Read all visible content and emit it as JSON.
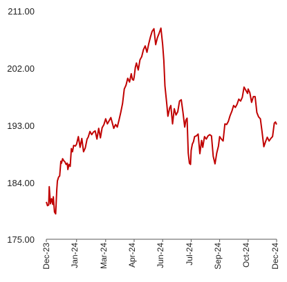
{
  "chart_data": {
    "type": "line",
    "title": "",
    "xlabel": "",
    "ylabel": "",
    "ylim": [
      175,
      211
    ],
    "yticks": [
      "211.00",
      "202.00",
      "193.00",
      "184.00",
      "175.00"
    ],
    "ytick_values": [
      211,
      202,
      193,
      184,
      175
    ],
    "xticks": [
      "Dec-23",
      "Jan-24",
      "Mar-24",
      "Apr-24",
      "Jun-24",
      "Jul-24",
      "Sep-24",
      "Oct-24",
      "Dec-24"
    ],
    "xtick_dates": [
      "2023-12-01",
      "2024-01-22",
      "2024-03-12",
      "2024-04-30",
      "2024-06-18",
      "2024-08-06",
      "2024-09-24",
      "2024-11-12",
      "2024-12-31"
    ],
    "grid": false,
    "legend": "none",
    "color": "#c00000",
    "series": [
      {
        "x": [
          "2023-12-01",
          "2023-12-03",
          "2023-12-05",
          "2023-12-06",
          "2023-12-08",
          "2023-12-10",
          "2023-12-12",
          "2023-12-13",
          "2023-12-15",
          "2023-12-17",
          "2023-12-19",
          "2023-12-20",
          "2023-12-22",
          "2023-12-24",
          "2023-12-26",
          "2023-12-27",
          "2023-12-29",
          "2023-12-31",
          "2024-01-02",
          "2024-01-04",
          "2024-01-06",
          "2024-01-07",
          "2024-01-09",
          "2024-01-11",
          "2024-01-13",
          "2024-01-15",
          "2024-01-17",
          "2024-01-20",
          "2024-01-22",
          "2024-01-25",
          "2024-01-28",
          "2024-01-31",
          "2024-02-03",
          "2024-02-06",
          "2024-02-09",
          "2024-02-11",
          "2024-02-14",
          "2024-02-17",
          "2024-02-20",
          "2024-02-23",
          "2024-02-26",
          "2024-02-29",
          "2024-03-03",
          "2024-03-06",
          "2024-03-09",
          "2024-03-12",
          "2024-03-15",
          "2024-03-18",
          "2024-03-21",
          "2024-03-23",
          "2024-03-26",
          "2024-03-29",
          "2024-04-01",
          "2024-04-04",
          "2024-04-07",
          "2024-04-10",
          "2024-04-13",
          "2024-04-16",
          "2024-04-19",
          "2024-04-22",
          "2024-04-25",
          "2024-04-27",
          "2024-04-29",
          "2024-04-30",
          "2024-05-02",
          "2024-05-04",
          "2024-05-07",
          "2024-05-10",
          "2024-05-13",
          "2024-05-16",
          "2024-05-19",
          "2024-05-22",
          "2024-05-25",
          "2024-05-28",
          "2024-05-31",
          "2024-06-03",
          "2024-06-06",
          "2024-06-09",
          "2024-06-12",
          "2024-06-15",
          "2024-06-18",
          "2024-06-20",
          "2024-06-22",
          "2024-06-25",
          "2024-06-27",
          "2024-06-30",
          "2024-07-02",
          "2024-07-05",
          "2024-07-08",
          "2024-07-11",
          "2024-07-14",
          "2024-07-17",
          "2024-07-20",
          "2024-07-23",
          "2024-07-26",
          "2024-07-28",
          "2024-07-30",
          "2024-08-01",
          "2024-08-03",
          "2024-08-05",
          "2024-08-06",
          "2024-08-08",
          "2024-08-10",
          "2024-08-12",
          "2024-08-15",
          "2024-08-18",
          "2024-08-21",
          "2024-08-24",
          "2024-08-26",
          "2024-08-29",
          "2024-09-01",
          "2024-09-04",
          "2024-09-07",
          "2024-09-10",
          "2024-09-13",
          "2024-09-16",
          "2024-09-19",
          "2024-09-22",
          "2024-09-24",
          "2024-09-27",
          "2024-09-30",
          "2024-10-03",
          "2024-10-06",
          "2024-10-09",
          "2024-10-12",
          "2024-10-15",
          "2024-10-18",
          "2024-10-21",
          "2024-10-24",
          "2024-10-27",
          "2024-10-30",
          "2024-11-02",
          "2024-11-05",
          "2024-11-08",
          "2024-11-11",
          "2024-11-12",
          "2024-11-15",
          "2024-11-18",
          "2024-11-21",
          "2024-11-24",
          "2024-11-27",
          "2024-11-30",
          "2024-12-03",
          "2024-12-06",
          "2024-12-09",
          "2024-12-12",
          "2024-12-15",
          "2024-12-18",
          "2024-12-21",
          "2024-12-24",
          "2024-12-27",
          "2024-12-29",
          "2024-12-31"
        ],
        "y": [
          180.9,
          180.3,
          180.4,
          183.3,
          180.6,
          181.4,
          180.5,
          181.7,
          179.3,
          179.0,
          182.8,
          184.2,
          184.8,
          185.0,
          187.3,
          187.0,
          187.7,
          187.4,
          187.2,
          186.8,
          187.0,
          186.0,
          186.8,
          186.5,
          189.3,
          188.8,
          189.8,
          189.7,
          190.0,
          191.2,
          189.5,
          190.9,
          188.8,
          189.4,
          190.8,
          191.1,
          192.0,
          191.5,
          191.9,
          192.1,
          190.8,
          192.5,
          191.0,
          192.6,
          193.1,
          194.0,
          193.2,
          193.7,
          194.2,
          193.5,
          192.5,
          193.1,
          192.7,
          193.8,
          195.0,
          196.4,
          198.7,
          199.3,
          200.4,
          199.8,
          201.1,
          200.2,
          200.1,
          200.6,
          202.1,
          202.8,
          201.7,
          203.3,
          203.8,
          204.9,
          205.5,
          204.5,
          205.8,
          206.9,
          207.8,
          208.2,
          205.7,
          206.8,
          207.5,
          208.3,
          205.7,
          203.2,
          199.2,
          196.4,
          194.4,
          195.7,
          196.1,
          193.2,
          195.6,
          194.6,
          195.1,
          196.8,
          197.0,
          195.0,
          192.7,
          193.8,
          194.1,
          188.6,
          187.0,
          186.8,
          189.0,
          190.0,
          190.4,
          191.2,
          191.3,
          191.6,
          188.5,
          190.6,
          189.5,
          191.2,
          190.8,
          191.3,
          191.5,
          191.3,
          188.1,
          186.9,
          188.6,
          189.7,
          191.2,
          190.8,
          190.5,
          193.2,
          193.1,
          193.6,
          194.5,
          195.2,
          196.1,
          195.8,
          196.3,
          197.1,
          196.8,
          197.4,
          199.0,
          198.5,
          198.0,
          198.7,
          198.1,
          196.6,
          197.5,
          197.5,
          195.0,
          194.3,
          194.0,
          191.9,
          189.6,
          190.4,
          191.1,
          190.5,
          190.9,
          191.2,
          193.3,
          193.5,
          193.1
        ]
      }
    ]
  }
}
